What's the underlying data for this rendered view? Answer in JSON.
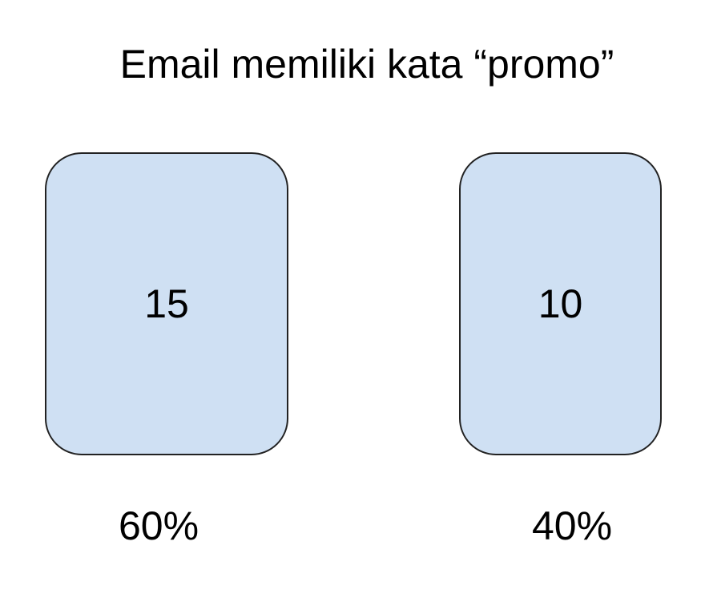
{
  "title": "Email memiliki kata “promo”",
  "box_color": "#cfe0f3",
  "boxes": [
    {
      "count": "15",
      "percent": "60%"
    },
    {
      "count": "10",
      "percent": "40%"
    }
  ]
}
